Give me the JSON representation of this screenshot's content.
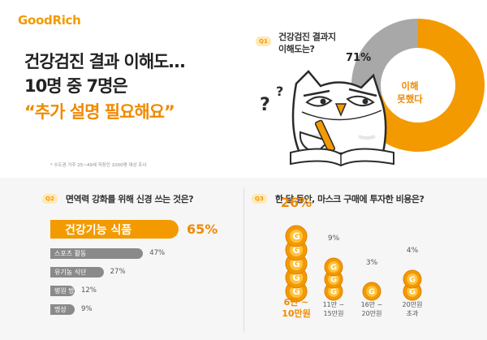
{
  "brand": "GoodRich",
  "headline": {
    "line1": "건강검진 결과 이해도…",
    "line2": "10명 중 7명은",
    "line3": "“추가 설명 필요해요”"
  },
  "footnote": "* 수도권 거주 25~49세 직장인 1000명 대상 조사",
  "colors": {
    "accent": "#f39a00",
    "gray": "#a8a8a8",
    "bar_gray": "#8a8a8a"
  },
  "q1": {
    "badge": "Q1",
    "question_line1": "건강검진 결과지",
    "question_line2": "이해도는?",
    "percent_label": "71%",
    "unknown_label_line1": "이해",
    "unknown_label_line2": "못했다"
  },
  "q2": {
    "badge": "Q2",
    "question": "면역력 강화를 위해 신경 쓰는 것은?"
  },
  "q3": {
    "badge": "Q3",
    "question": "한 달 동안, 마스크 구매에 투자한 비용은?"
  },
  "chart_data": [
    {
      "type": "pie",
      "title": "건강검진 결과지 이해도는?",
      "slices": [
        {
          "label": "이해 못했다",
          "value": 71
        },
        {
          "label": "",
          "value": 29
        }
      ]
    },
    {
      "type": "bar",
      "orientation": "horizontal",
      "title": "면역력 강화를 위해 신경 쓰는 것은?",
      "categories": [
        "건강기능 식품",
        "스포츠 활동",
        "유기농 식단",
        "병원 방문",
        "명상"
      ],
      "values": [
        65,
        47,
        27,
        12,
        9
      ],
      "labels": [
        "65%",
        "47%",
        "27%",
        "12%",
        "9%"
      ],
      "unit": "%"
    },
    {
      "type": "bar",
      "title": "한 달 동안, 마스크 구매에 투자한 비용은?",
      "categories": [
        [
          "6만 ~",
          "10만원"
        ],
        [
          "11만 ~",
          "15만원"
        ],
        [
          "16만 ~",
          "20만원"
        ],
        [
          "20만원",
          "초과"
        ]
      ],
      "values": [
        26,
        9,
        3,
        4
      ],
      "labels": [
        "26%",
        "9%",
        "3%",
        "4%"
      ],
      "coin_counts": [
        5,
        3,
        1,
        2
      ],
      "coin_symbol": "G",
      "unit": "%"
    }
  ]
}
